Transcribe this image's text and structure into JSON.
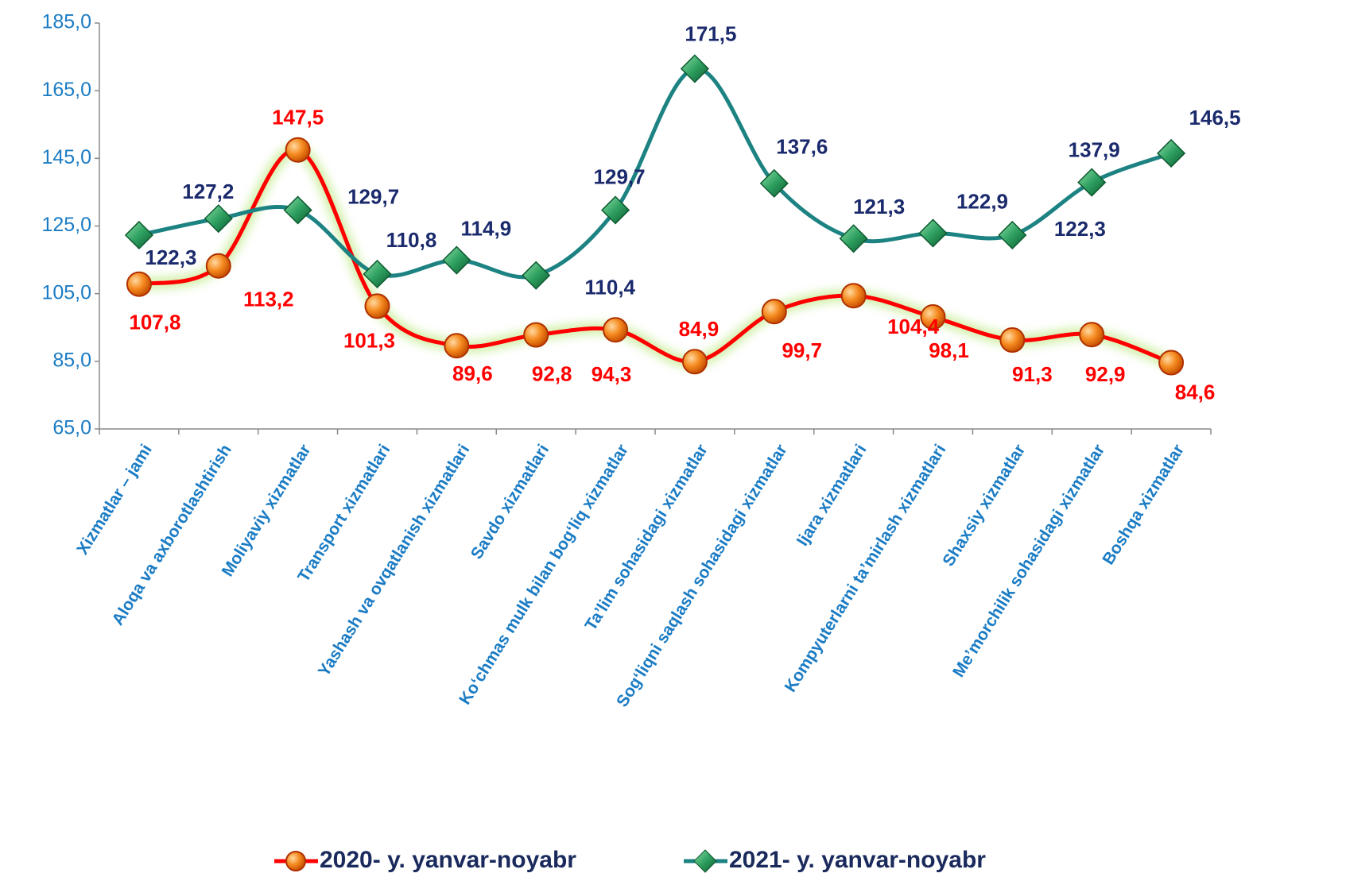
{
  "chart_data": {
    "type": "line",
    "categories": [
      "Xizmatlar – jami",
      "Aloqa va axborotlashtirish",
      "Moliyaviy xizmatlar",
      "Transport xizmatlari",
      "Yashash va ovqatlanish xizmatlari",
      "Savdo xizmatlari",
      "Ko‘chmas mulk bilan bog‘liq xizmatlar",
      "Ta’lim sohasidagi xizmatlar",
      "Sog‘liqni saqlash sohasidagi xizmatlar",
      "Ijara xizmatlari",
      "Kompyuterlarni ta’mirlash xizmatlari",
      "Shaxsiy xizmatlar",
      "Me’morchilik sohasidagi xizmatlar",
      "Boshqa xizmatlar"
    ],
    "series": [
      {
        "name": "2020- y. yanvar-noyabr",
        "color": "#ff0000",
        "values": [
          107.8,
          113.2,
          147.5,
          101.3,
          89.6,
          92.8,
          94.3,
          84.9,
          99.7,
          104.4,
          98.1,
          91.3,
          92.9,
          84.6
        ],
        "value_labels": [
          "107,8",
          "113,2",
          "147,5",
          "101,3",
          "89,6",
          "92,8",
          "94,3",
          "84,9",
          "99,7",
          "104,4",
          "98,1",
          "91,3",
          "92,9",
          "84,6"
        ]
      },
      {
        "name": "2021- y. yanvar-noyabr",
        "color": "#1d8282",
        "values": [
          122.3,
          127.2,
          129.7,
          110.8,
          114.9,
          110.4,
          129.7,
          171.5,
          137.6,
          121.3,
          122.9,
          122.3,
          137.9,
          146.5
        ],
        "value_labels": [
          "122,3",
          "127,2",
          "129,7",
          "110,8",
          "114,9",
          "110,4",
          "129,7",
          "171,5",
          "137,6",
          "121,3",
          "122,9",
          "122,3",
          "137,9",
          "146,5"
        ]
      }
    ],
    "ylim": [
      65,
      185
    ],
    "yticks": [
      {
        "value": 65,
        "label": "65,0"
      },
      {
        "value": 85,
        "label": "85,0"
      },
      {
        "value": 105,
        "label": "105,0"
      },
      {
        "value": 125,
        "label": "125,0"
      },
      {
        "value": 145,
        "label": "145,0"
      },
      {
        "value": 165,
        "label": "165,0"
      },
      {
        "value": 185,
        "label": "185,0"
      }
    ],
    "legend": "bottom"
  }
}
